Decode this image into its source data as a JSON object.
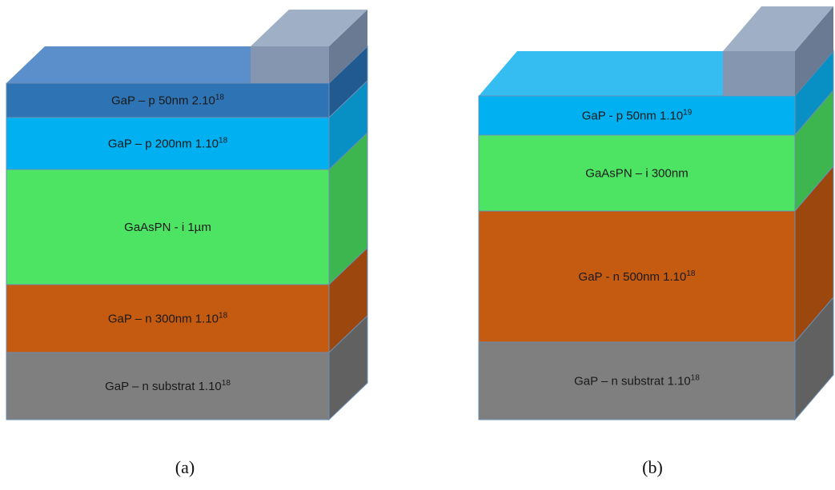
{
  "diagrams": [
    {
      "caption": "(a)",
      "layers": [
        {
          "text": "GaP – p 50nm 2.10",
          "exp": "18",
          "front": "#2e74b5",
          "side": "#215a90",
          "top": "#5b8fcc"
        },
        {
          "text": "GaP – p 200nm 1.10",
          "exp": "18",
          "front": "#00b0f0",
          "side": "#0890c4",
          "top": "#3fc3f3"
        },
        {
          "text": "GaAsPN - i 1µm",
          "exp": "",
          "front": "#4de464",
          "side": "#3db64f",
          "top": "#7eef8f"
        },
        {
          "text": "GaP – n 300nm 1.10",
          "exp": "18",
          "front": "#c55a11",
          "side": "#9c470d",
          "top": "#d98040"
        },
        {
          "text": "GaP – n substrat 1.10",
          "exp": "18",
          "front": "#7f7f7f",
          "side": "#616161",
          "top": "#a0a0a0"
        }
      ],
      "contact": {
        "front": "#8496b0",
        "side": "#6a7a92",
        "top": "#9eafc6"
      }
    },
    {
      "caption": "(b)",
      "layers": [
        {
          "text": "GaP - p 50nm 1.10",
          "exp": "19",
          "front": "#00b0f0",
          "side": "#0890c4",
          "top": "#35bdf2"
        },
        {
          "text": "GaAsPN – i 300nm",
          "exp": "",
          "front": "#4de464",
          "side": "#3db64f",
          "top": "#7eef8f"
        },
        {
          "text": "GaP - n 500nm 1.10",
          "exp": "18",
          "front": "#c55a11",
          "side": "#9c470d",
          "top": "#d98040"
        },
        {
          "text": "GaP – n substrat 1.10",
          "exp": "18",
          "front": "#7f7f7f",
          "side": "#616161",
          "top": "#a0a0a0"
        }
      ],
      "contact": {
        "front": "#8496b0",
        "side": "#6a7a92",
        "top": "#9eafc6"
      }
    }
  ]
}
